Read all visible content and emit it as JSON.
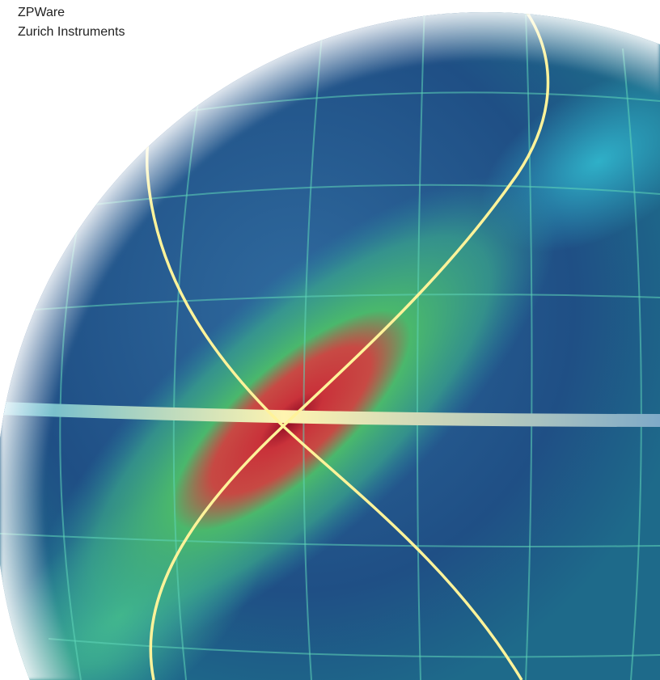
{
  "header": {
    "product": "ZPWare",
    "company": "Zurich Instruments"
  }
}
